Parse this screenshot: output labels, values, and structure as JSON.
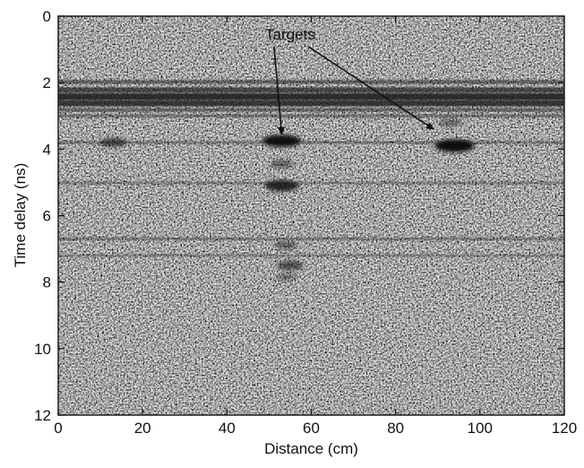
{
  "chart_data": {
    "type": "heatmap",
    "title": "",
    "xlabel": "Distance (cm)",
    "ylabel": "Time delay (ns)",
    "xlim": [
      0,
      120
    ],
    "ylim": [
      12,
      0
    ],
    "y_axis_inverted": true,
    "colormap": "grayscale",
    "grid": false,
    "x_ticks": [
      0,
      20,
      40,
      60,
      80,
      100,
      120
    ],
    "y_ticks": [
      0,
      2,
      4,
      6,
      8,
      10,
      12
    ],
    "annotation": {
      "text": "Targets",
      "text_position": {
        "x": 55,
        "y": 0.7
      },
      "arrows_to": [
        {
          "x": 53,
          "y": 3.55
        },
        {
          "x": 89,
          "y": 3.4
        }
      ]
    },
    "horizontal_bands": [
      {
        "y": 1.98,
        "strength": 0.4
      },
      {
        "y": 2.22,
        "strength": 0.65
      },
      {
        "y": 2.42,
        "strength": 0.9
      },
      {
        "y": 2.62,
        "strength": 0.8
      },
      {
        "y": 2.82,
        "strength": 0.35
      },
      {
        "y": 3.0,
        "strength": 0.25
      },
      {
        "y": 3.8,
        "strength": 0.2
      },
      {
        "y": 5.02,
        "strength": 0.15
      },
      {
        "y": 6.7,
        "strength": 0.18
      },
      {
        "y": 7.2,
        "strength": 0.12
      }
    ],
    "reflections": [
      {
        "x": 53,
        "y": 3.75,
        "strength": 0.95
      },
      {
        "x": 94,
        "y": 3.9,
        "strength": 1.0
      },
      {
        "x": 53,
        "y": 5.1,
        "strength": 0.8
      },
      {
        "x": 53,
        "y": 4.45,
        "strength": 0.35
      },
      {
        "x": 54,
        "y": 6.9,
        "strength": 0.35
      },
      {
        "x": 55,
        "y": 7.5,
        "strength": 0.5
      },
      {
        "x": 54,
        "y": 7.85,
        "strength": 0.25
      },
      {
        "x": 93,
        "y": 3.2,
        "strength": 0.3
      },
      {
        "x": 13,
        "y": 3.8,
        "strength": 0.5
      }
    ]
  }
}
